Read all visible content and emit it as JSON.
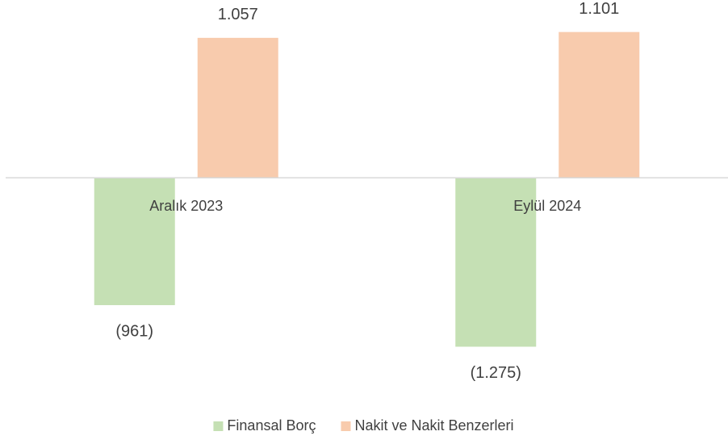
{
  "chart_data": {
    "type": "bar",
    "categories": [
      "Aralık 2023",
      "Eylül 2024"
    ],
    "series": [
      {
        "name": "Finansal Borç",
        "color": "#c5e0b4",
        "values": [
          -961,
          -1275
        ],
        "value_labels": [
          "(961)",
          "(1.275)"
        ]
      },
      {
        "name": "Nakit ve Nakit Benzerleri",
        "color": "#f8cbad",
        "values": [
          1057,
          1101
        ],
        "value_labels": [
          "1.057",
          "1.101"
        ]
      }
    ],
    "ylim": [
      -1400,
      1300
    ],
    "legend": "bottom"
  }
}
